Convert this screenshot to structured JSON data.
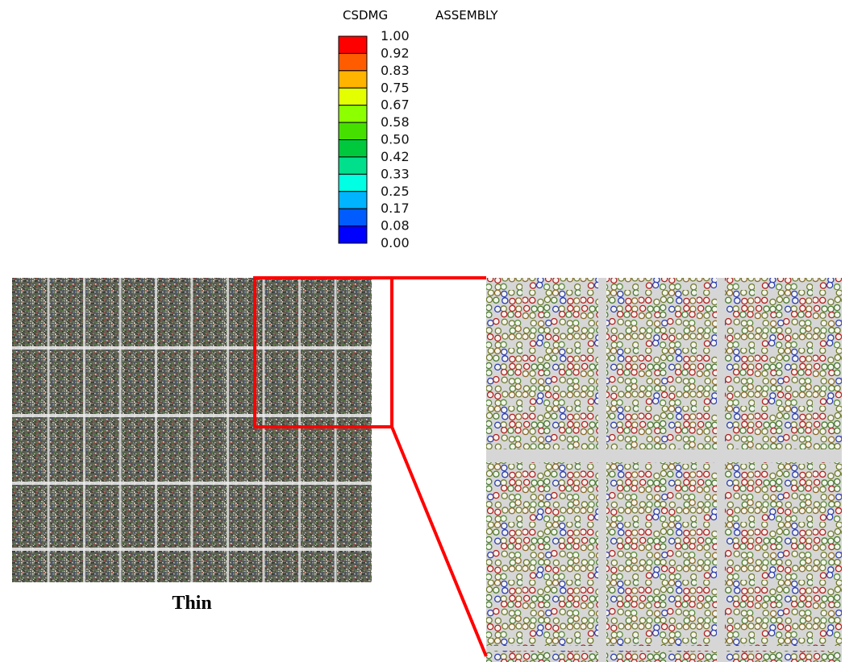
{
  "legend": {
    "variable": "CSDMG",
    "instance": "ASSEMBLY",
    "labels": [
      "1.00",
      "0.92",
      "0.83",
      "0.75",
      "0.67",
      "0.58",
      "0.50",
      "0.42",
      "0.33",
      "0.25",
      "0.17",
      "0.08",
      "0.00"
    ],
    "colors": [
      "#ff0000",
      "#ff5c00",
      "#ffb400",
      "#e3ff00",
      "#8cff00",
      "#46e000",
      "#00c83c",
      "#00e08c",
      "#00ffe3",
      "#00b4ff",
      "#005cff",
      "#0000ff"
    ]
  },
  "caption": "Thin"
}
